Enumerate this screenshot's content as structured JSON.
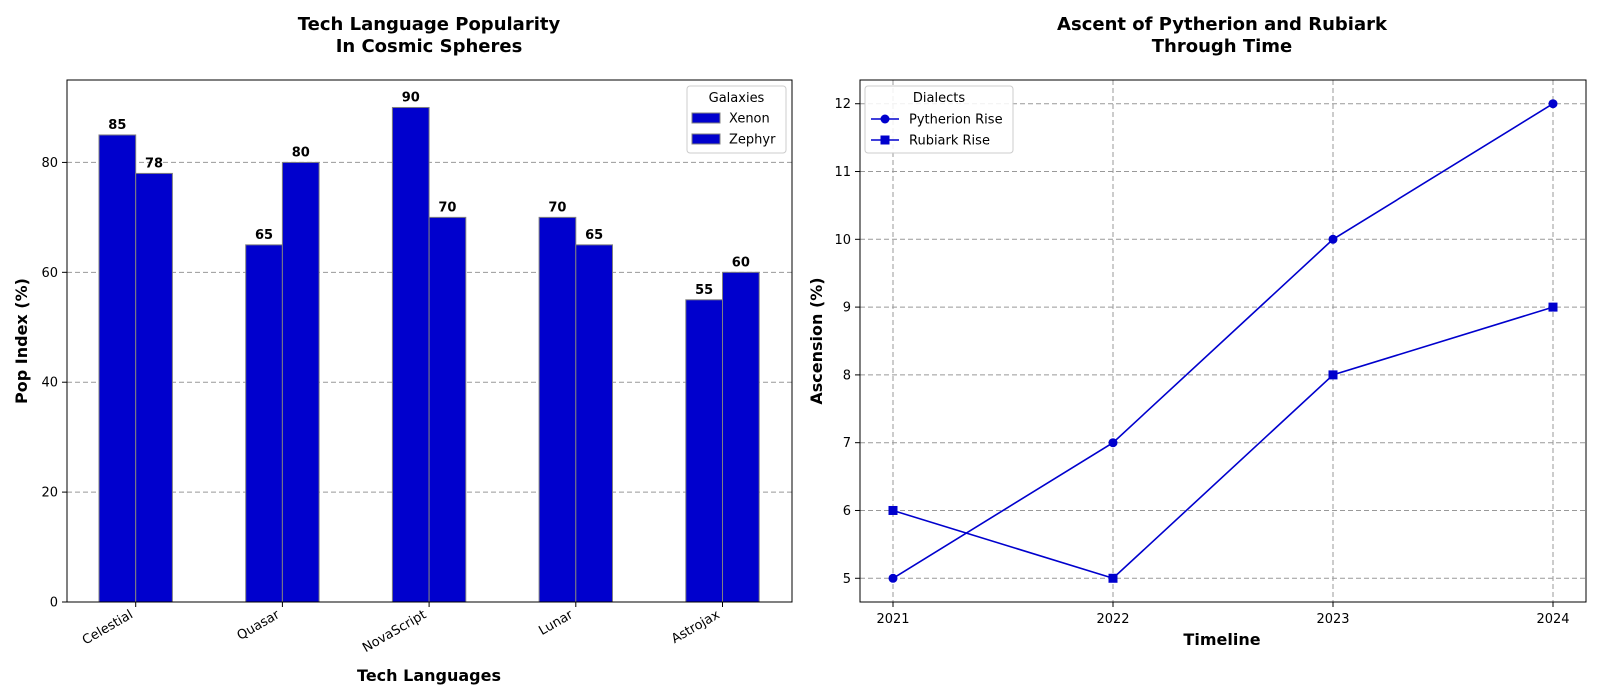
{
  "chart_data": [
    {
      "type": "bar",
      "title": "Tech Language Popularity\nIn Cosmic Spheres",
      "xlabel": "Tech Languages",
      "ylabel": "Pop Index (%)",
      "categories": [
        "Celestial",
        "Quasar",
        "NovaScript",
        "Lunar",
        "Astrojax"
      ],
      "series": [
        {
          "name": "Xenon",
          "values": [
            85,
            65,
            90,
            70,
            55
          ]
        },
        {
          "name": "Zephyr",
          "values": [
            78,
            80,
            70,
            65,
            60
          ]
        }
      ],
      "ylim": [
        0,
        95
      ],
      "yticks": [
        0,
        20,
        40,
        60,
        80
      ],
      "grid": "y",
      "legend": {
        "title": "Galaxies",
        "placement": "top-right"
      },
      "colors": {
        "bar": "#0000cd",
        "edge": "#808080"
      }
    },
    {
      "type": "line",
      "title": "Ascent of Pytherion and Rubiark\nThrough Time",
      "xlabel": "Timeline",
      "ylabel": "Ascension (%)",
      "x": [
        "2021",
        "2022",
        "2023",
        "2024"
      ],
      "series": [
        {
          "name": "Pytherion Rise",
          "values": [
            5,
            7,
            10,
            12
          ],
          "marker": "circle"
        },
        {
          "name": "Rubiark Rise",
          "values": [
            6,
            5,
            8,
            9
          ],
          "marker": "square"
        }
      ],
      "ylim": [
        4.65,
        12.35
      ],
      "yticks": [
        5,
        6,
        7,
        8,
        9,
        10,
        11,
        12
      ],
      "grid": "both",
      "legend": {
        "title": "Dialects",
        "placement": "top-left"
      },
      "colors": {
        "line": "#0000cd"
      }
    }
  ]
}
